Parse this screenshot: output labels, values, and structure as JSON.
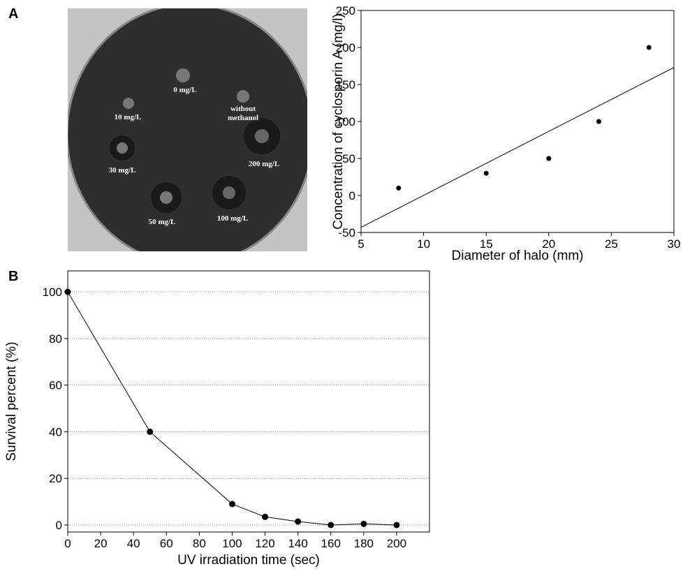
{
  "panels": [
    "A",
    "B"
  ],
  "photo": {
    "halo_labels": [
      "0 mg/L",
      "10 mg/L",
      "200 mg/L",
      "30 mg/L",
      "50 mg/L",
      "100 mg/L"
    ],
    "without_methanol": [
      "without",
      "methanol"
    ]
  },
  "chart_data": [
    {
      "type": "scatter",
      "x_label": "Diameter of halo (mm)",
      "y_label": "Concentration of cyclosporin A (mg/l)",
      "x": [
        8,
        15,
        20,
        24,
        28
      ],
      "values": [
        10,
        30,
        50,
        100,
        200
      ],
      "color": "#000000",
      "trendline": {
        "x": [
          5,
          30
        ],
        "values": [
          -43,
          173
        ]
      },
      "xlim": [
        5,
        30
      ],
      "xticks": [
        5,
        10,
        15,
        20,
        25,
        30
      ],
      "ylim": [
        -50,
        250
      ],
      "yticks": [
        -50,
        0,
        50,
        100,
        150,
        200,
        250
      ],
      "grid": false
    },
    {
      "type": "line",
      "x_label": "UV irradiation time (sec)",
      "y_label": "Survival percent (%)",
      "x": [
        0,
        50,
        100,
        120,
        140,
        160,
        180,
        200
      ],
      "values": [
        100,
        40,
        9,
        3.5,
        1.5,
        0,
        0.5,
        0
      ],
      "color": "#000000",
      "xlim": [
        0,
        220
      ],
      "xticks": [
        0,
        20,
        40,
        60,
        80,
        100,
        120,
        140,
        160,
        180,
        200
      ],
      "ylim": [
        -3,
        109
      ],
      "yticks": [
        0,
        20,
        40,
        60,
        80,
        100
      ],
      "grid": true
    }
  ]
}
